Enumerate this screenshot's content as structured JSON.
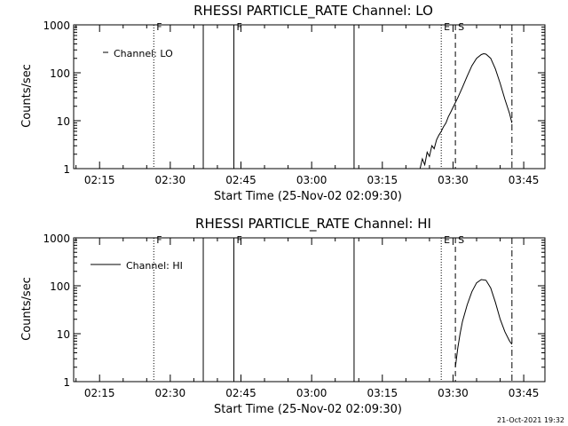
{
  "footer_stamp": "21-Oct-2021 19:32",
  "chart_data": [
    {
      "type": "line",
      "title": "RHESSI PARTICLE_RATE Channel: LO",
      "xlabel": "Start Time (25-Nov-02 02:09:30)",
      "ylabel": "Counts/sec",
      "ylog": true,
      "ylim": [
        1,
        1000
      ],
      "yticks": [
        "1",
        "10",
        "100",
        "1000"
      ],
      "xlim": [
        "02:09:30",
        "03:49:30"
      ],
      "xticks": [
        "02:15",
        "02:30",
        "02:45",
        "03:00",
        "03:15",
        "03:30",
        "03:45"
      ],
      "legend": {
        "position": "top-left",
        "label": "Channel: LO"
      },
      "vlines": [
        {
          "time": "02:26:30",
          "style": "dotted",
          "label": "F"
        },
        {
          "time": "02:37:00",
          "style": "solid"
        },
        {
          "time": "02:43:30",
          "style": "solid",
          "label": "F"
        },
        {
          "time": "03:09:00",
          "style": "solid"
        },
        {
          "time": "03:27:30",
          "style": "dotted",
          "label": "E"
        },
        {
          "time": "03:30:30",
          "style": "dashed",
          "label": "S"
        },
        {
          "time": "03:42:30",
          "style": "dashdot"
        }
      ],
      "series": [
        {
          "x": [
            "03:23:00",
            "03:23:30",
            "03:24:00",
            "03:24:30",
            "03:25:00",
            "03:25:30",
            "03:26:00",
            "03:26:30",
            "03:27:00",
            "03:27:30",
            "03:28:00",
            "03:28:30",
            "03:29:00",
            "03:29:30",
            "03:30:00",
            "03:31:00",
            "03:32:00",
            "03:33:00",
            "03:34:00",
            "03:35:00",
            "03:36:00",
            "03:36:30",
            "03:37:00",
            "03:38:00",
            "03:39:00",
            "03:40:00",
            "03:41:00",
            "03:42:00",
            "03:42:30"
          ],
          "values": [
            1,
            1.6,
            1.2,
            2.2,
            1.8,
            3,
            2.6,
            4,
            5,
            6,
            7.5,
            9,
            12,
            15,
            19,
            30,
            50,
            85,
            140,
            200,
            240,
            250,
            245,
            200,
            120,
            60,
            28,
            14,
            9
          ]
        }
      ]
    },
    {
      "type": "line",
      "title": "RHESSI PARTICLE_RATE Channel: HI",
      "xlabel": "Start Time (25-Nov-02 02:09:30)",
      "ylabel": "Counts/sec",
      "ylog": true,
      "ylim": [
        1,
        1000
      ],
      "yticks": [
        "1",
        "10",
        "100",
        "1000"
      ],
      "xlim": [
        "02:09:30",
        "03:49:30"
      ],
      "xticks": [
        "02:15",
        "02:30",
        "02:45",
        "03:00",
        "03:15",
        "03:30",
        "03:45"
      ],
      "legend": {
        "position": "top-left",
        "label": "Channel: HI"
      },
      "vlines": [
        {
          "time": "02:26:30",
          "style": "dotted",
          "label": "F"
        },
        {
          "time": "02:37:00",
          "style": "solid"
        },
        {
          "time": "02:43:30",
          "style": "solid",
          "label": "F"
        },
        {
          "time": "03:09:00",
          "style": "solid"
        },
        {
          "time": "03:27:30",
          "style": "dotted",
          "label": "E"
        },
        {
          "time": "03:30:30",
          "style": "dashed",
          "label": "S"
        },
        {
          "time": "03:42:30",
          "style": "dashdot"
        }
      ],
      "series": [
        {
          "x": [
            "03:30:30",
            "03:31:00",
            "03:31:30",
            "03:32:00",
            "03:33:00",
            "03:34:00",
            "03:35:00",
            "03:36:00",
            "03:37:00",
            "03:38:00",
            "03:39:00",
            "03:40:00",
            "03:41:00",
            "03:42:00",
            "03:42:30"
          ],
          "values": [
            2,
            5,
            10,
            18,
            40,
            75,
            115,
            135,
            130,
            90,
            45,
            20,
            11,
            7,
            6
          ]
        }
      ]
    }
  ]
}
